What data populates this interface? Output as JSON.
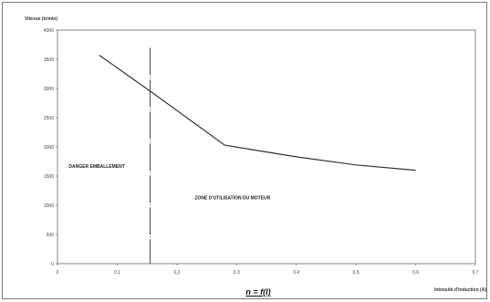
{
  "chart_data": {
    "type": "line",
    "title": "n = f(I)",
    "ylabel": "Vitesse (tr/min)",
    "xlabel": "Intensité d'induction (A)",
    "xlim": [
      0,
      0.7
    ],
    "ylim": [
      0,
      4000
    ],
    "x_ticks": [
      "0",
      "0,1",
      "0,2",
      "0,3",
      "0,4",
      "0,5",
      "0,6",
      "0,7"
    ],
    "y_ticks": [
      "0",
      "500",
      "1000",
      "1500",
      "2000",
      "2500",
      "3000",
      "3500",
      "4000"
    ],
    "grid": false,
    "series": [
      {
        "x": [
          0.07,
          0.16,
          0.28,
          0.4,
          0.5,
          0.6
        ],
        "y": [
          3570,
          2920,
          2030,
          1830,
          1690,
          1600
        ],
        "color": "#333333"
      }
    ],
    "vertical_line_x": 0.155,
    "annotations": [
      {
        "text": "DANGER EMBALLEMENT",
        "x": 0.019,
        "y": 1640
      },
      {
        "text": "ZONE D'UTILISATION DU MOTEUR",
        "x": 0.23,
        "y": 1100
      }
    ]
  },
  "colors": {
    "line": "#333333",
    "axis": "#555555",
    "plot_border": "#666666"
  }
}
